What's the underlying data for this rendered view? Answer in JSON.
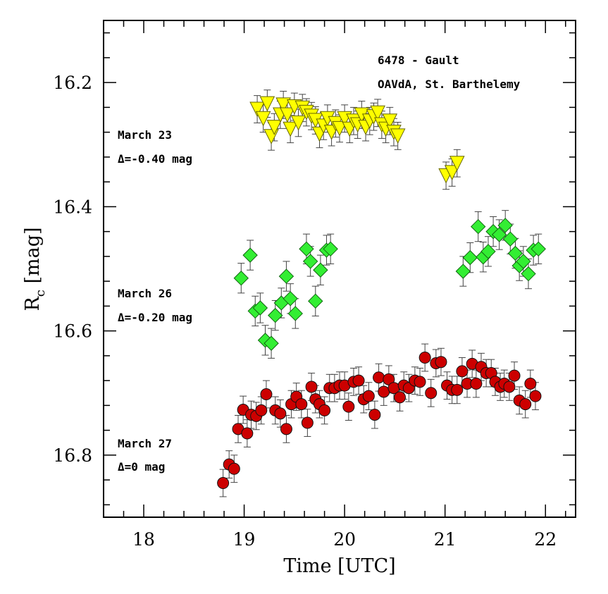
{
  "chart_data": {
    "type": "scatter",
    "title": "6478 - Gault",
    "subtitle": "OAVdA, St. Barthelemy",
    "xlabel": "Time [UTC]",
    "ylabel_base": "R",
    "ylabel_sub": "c",
    "ylabel_unit": " [mag]",
    "xlim": [
      17.6,
      22.3
    ],
    "ylim": [
      16.1,
      16.9
    ],
    "y_inverted": true,
    "x_ticks": [
      18,
      19,
      20,
      21,
      22
    ],
    "y_ticks": [
      16.2,
      16.4,
      16.6,
      16.8
    ],
    "y_tick_labels": [
      "16.2",
      "16.4",
      "16.6",
      "16.8"
    ],
    "grid": false,
    "series": [
      {
        "name": "March 23",
        "offset_label": "Δ=-0.40 mag",
        "marker": "triangle-down",
        "color": "#ffff00",
        "err": 0.022,
        "points": [
          [
            19.13,
            16.243
          ],
          [
            19.19,
            16.258
          ],
          [
            19.23,
            16.234
          ],
          [
            19.27,
            16.287
          ],
          [
            19.3,
            16.272
          ],
          [
            19.36,
            16.252
          ],
          [
            19.39,
            16.236
          ],
          [
            19.43,
            16.252
          ],
          [
            19.46,
            16.275
          ],
          [
            19.5,
            16.239
          ],
          [
            19.54,
            16.265
          ],
          [
            19.58,
            16.241
          ],
          [
            19.62,
            16.248
          ],
          [
            19.67,
            16.254
          ],
          [
            19.71,
            16.261
          ],
          [
            19.75,
            16.283
          ],
          [
            19.79,
            16.27
          ],
          [
            19.83,
            16.258
          ],
          [
            19.87,
            16.28
          ],
          [
            19.91,
            16.266
          ],
          [
            19.95,
            16.274
          ],
          [
            20.0,
            16.258
          ],
          [
            20.05,
            16.275
          ],
          [
            20.09,
            16.262
          ],
          [
            20.13,
            16.268
          ],
          [
            20.17,
            16.252
          ],
          [
            20.21,
            16.272
          ],
          [
            20.25,
            16.262
          ],
          [
            20.29,
            16.255
          ],
          [
            20.33,
            16.249
          ],
          [
            20.37,
            16.268
          ],
          [
            20.41,
            16.275
          ],
          [
            20.45,
            16.262
          ],
          [
            20.49,
            16.28
          ],
          [
            20.53,
            16.286
          ],
          [
            21.01,
            16.35
          ],
          [
            21.07,
            16.345
          ],
          [
            21.12,
            16.33
          ]
        ]
      },
      {
        "name": "March 26",
        "offset_label": "Δ=-0.20 mag",
        "marker": "diamond",
        "color": "#33ee33",
        "err": 0.024,
        "points": [
          [
            18.97,
            16.515
          ],
          [
            19.06,
            16.478
          ],
          [
            19.11,
            16.568
          ],
          [
            19.16,
            16.563
          ],
          [
            19.21,
            16.615
          ],
          [
            19.27,
            16.62
          ],
          [
            19.31,
            16.575
          ],
          [
            19.37,
            16.555
          ],
          [
            19.42,
            16.512
          ],
          [
            19.46,
            16.548
          ],
          [
            19.51,
            16.572
          ],
          [
            19.62,
            16.468
          ],
          [
            19.66,
            16.488
          ],
          [
            19.71,
            16.552
          ],
          [
            19.76,
            16.502
          ],
          [
            19.82,
            16.47
          ],
          [
            19.86,
            16.468
          ],
          [
            21.18,
            16.504
          ],
          [
            21.25,
            16.482
          ],
          [
            21.33,
            16.432
          ],
          [
            21.38,
            16.481
          ],
          [
            21.43,
            16.472
          ],
          [
            21.48,
            16.44
          ],
          [
            21.54,
            16.445
          ],
          [
            21.6,
            16.43
          ],
          [
            21.65,
            16.452
          ],
          [
            21.7,
            16.475
          ],
          [
            21.74,
            16.495
          ],
          [
            21.78,
            16.488
          ],
          [
            21.83,
            16.508
          ],
          [
            21.88,
            16.47
          ],
          [
            21.93,
            16.468
          ]
        ]
      },
      {
        "name": "March 27",
        "offset_label": "Δ=0 mag",
        "marker": "circle",
        "color": "#cc0000",
        "err": 0.022,
        "points": [
          [
            18.79,
            16.845
          ],
          [
            18.85,
            16.815
          ],
          [
            18.9,
            16.822
          ],
          [
            18.94,
            16.758
          ],
          [
            18.99,
            16.727
          ],
          [
            19.03,
            16.765
          ],
          [
            19.07,
            16.735
          ],
          [
            19.12,
            16.737
          ],
          [
            19.17,
            16.728
          ],
          [
            19.22,
            16.702
          ],
          [
            19.31,
            16.728
          ],
          [
            19.36,
            16.733
          ],
          [
            19.42,
            16.758
          ],
          [
            19.47,
            16.718
          ],
          [
            19.52,
            16.706
          ],
          [
            19.57,
            16.718
          ],
          [
            19.63,
            16.748
          ],
          [
            19.67,
            16.69
          ],
          [
            19.71,
            16.71
          ],
          [
            19.75,
            16.718
          ],
          [
            19.8,
            16.728
          ],
          [
            19.85,
            16.692
          ],
          [
            19.9,
            16.692
          ],
          [
            19.95,
            16.688
          ],
          [
            20.0,
            16.688
          ],
          [
            20.04,
            16.722
          ],
          [
            20.09,
            16.682
          ],
          [
            20.14,
            16.68
          ],
          [
            20.19,
            16.71
          ],
          [
            20.24,
            16.705
          ],
          [
            20.3,
            16.735
          ],
          [
            20.34,
            16.675
          ],
          [
            20.39,
            16.698
          ],
          [
            20.44,
            16.678
          ],
          [
            20.49,
            16.692
          ],
          [
            20.55,
            16.707
          ],
          [
            20.59,
            16.688
          ],
          [
            20.64,
            16.692
          ],
          [
            20.7,
            16.68
          ],
          [
            20.75,
            16.682
          ],
          [
            20.8,
            16.643
          ],
          [
            20.86,
            16.7
          ],
          [
            20.91,
            16.652
          ],
          [
            20.96,
            16.65
          ],
          [
            21.02,
            16.688
          ],
          [
            21.07,
            16.695
          ],
          [
            21.12,
            16.695
          ],
          [
            21.17,
            16.665
          ],
          [
            21.22,
            16.685
          ],
          [
            21.27,
            16.653
          ],
          [
            21.31,
            16.685
          ],
          [
            21.36,
            16.658
          ],
          [
            21.41,
            16.668
          ],
          [
            21.46,
            16.668
          ],
          [
            21.5,
            16.682
          ],
          [
            21.55,
            16.69
          ],
          [
            21.59,
            16.685
          ],
          [
            21.64,
            16.69
          ],
          [
            21.69,
            16.672
          ],
          [
            21.74,
            16.712
          ],
          [
            21.8,
            16.718
          ],
          [
            21.85,
            16.685
          ],
          [
            21.9,
            16.705
          ]
        ]
      }
    ]
  }
}
